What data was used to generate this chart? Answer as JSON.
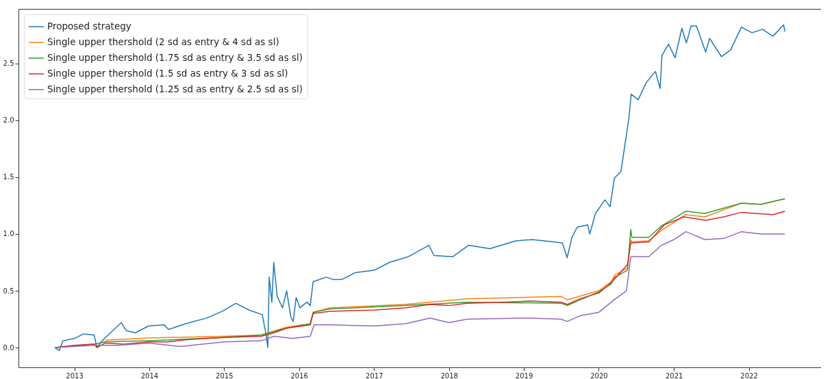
{
  "chart_data": {
    "type": "line",
    "xlim": [
      "2012-04-04",
      "2022-12-19"
    ],
    "ylim": [
      -0.174,
      2.98
    ],
    "xticks": [
      {
        "value": "2013-01-01",
        "label": "2013"
      },
      {
        "value": "2014-01-01",
        "label": "2014"
      },
      {
        "value": "2015-01-01",
        "label": "2015"
      },
      {
        "value": "2016-01-01",
        "label": "2016"
      },
      {
        "value": "2017-01-01",
        "label": "2017"
      },
      {
        "value": "2018-01-01",
        "label": "2018"
      },
      {
        "value": "2019-01-01",
        "label": "2019"
      },
      {
        "value": "2020-01-01",
        "label": "2020"
      },
      {
        "value": "2021-01-01",
        "label": "2021"
      },
      {
        "value": "2022-01-01",
        "label": "2022"
      }
    ],
    "yticks": [
      {
        "value": 0,
        "label": "0.0"
      },
      {
        "value": 0.5,
        "label": "0.5"
      },
      {
        "value": 1,
        "label": "1.0"
      },
      {
        "value": 1.5,
        "label": "1.5"
      },
      {
        "value": 2,
        "label": "2.0"
      },
      {
        "value": 2.5,
        "label": "2.5"
      }
    ],
    "grid": false,
    "legend": "top left",
    "line_style": "solid",
    "marker": "none",
    "series": [
      {
        "name": "Proposed strategy",
        "color": "#1f77b4",
        "x": [
          "2012-09-28",
          "2012-10-20",
          "2012-11-07",
          "2013-01-01",
          "2013-02-15",
          "2013-04-08",
          "2013-04-21",
          "2013-05-22",
          "2013-08-18",
          "2013-09-11",
          "2013-10-25",
          "2013-12-29",
          "2014-03-15",
          "2014-04-05",
          "2014-06-27",
          "2014-10-08",
          "2014-12-24",
          "2015-02-27",
          "2015-05-03",
          "2015-07-06",
          "2015-07-26",
          "2015-08-02",
          "2015-08-09",
          "2015-08-22",
          "2015-08-31",
          "2015-09-17",
          "2015-10-13",
          "2015-11-02",
          "2015-11-22",
          "2015-12-04",
          "2015-12-18",
          "2016-01-06",
          "2016-02-08",
          "2016-02-25",
          "2016-03-10",
          "2016-05-13",
          "2016-06-15",
          "2016-07-29",
          "2016-10-02",
          "2017-01-01",
          "2017-03-18",
          "2017-06-17",
          "2017-09-25",
          "2017-10-20",
          "2018-01-20",
          "2018-04-06",
          "2018-07-19",
          "2018-11-24",
          "2019-02-11",
          "2019-05-25",
          "2019-07-08",
          "2019-07-31",
          "2019-08-23",
          "2019-09-18",
          "2019-11-08",
          "2019-11-18",
          "2019-12-16",
          "2020-01-31",
          "2020-02-25",
          "2020-03-17",
          "2020-04-18",
          "2020-05-07",
          "2020-05-27",
          "2020-06-07",
          "2020-07-11",
          "2020-08-19",
          "2020-10-03",
          "2020-10-26",
          "2020-11-04",
          "2020-12-06",
          "2021-01-07",
          "2021-02-09",
          "2021-03-03",
          "2021-03-26",
          "2021-04-21",
          "2021-06-05",
          "2021-06-24",
          "2021-08-21",
          "2021-10-05",
          "2021-11-26",
          "2022-01-17",
          "2022-03-09",
          "2022-04-29",
          "2022-06-20",
          "2022-06-26"
        ],
        "values": [
          0.0,
          -0.025,
          0.06,
          0.08,
          0.12,
          0.11,
          0.0,
          0.07,
          0.22,
          0.15,
          0.13,
          0.19,
          0.2,
          0.16,
          0.21,
          0.26,
          0.32,
          0.39,
          0.33,
          0.29,
          0.1,
          0.0,
          0.62,
          0.4,
          0.75,
          0.45,
          0.35,
          0.5,
          0.27,
          0.23,
          0.44,
          0.35,
          0.4,
          0.37,
          0.58,
          0.62,
          0.6,
          0.6,
          0.66,
          0.68,
          0.75,
          0.8,
          0.9,
          0.81,
          0.8,
          0.9,
          0.87,
          0.94,
          0.95,
          0.93,
          0.92,
          0.79,
          0.97,
          1.06,
          1.08,
          1.0,
          1.18,
          1.3,
          1.24,
          1.49,
          1.55,
          1.78,
          2.02,
          2.23,
          2.18,
          2.33,
          2.43,
          2.28,
          2.57,
          2.67,
          2.55,
          2.81,
          2.68,
          2.83,
          2.83,
          2.6,
          2.72,
          2.56,
          2.62,
          2.82,
          2.77,
          2.8,
          2.74,
          2.84,
          2.78
        ]
      },
      {
        "name": "Single upper thershold (2 sd as entry & 4 sd as sl)",
        "color": "#ff7f0e",
        "x": [
          "2013-06-01",
          "2014-01-01",
          "2015-01-01",
          "2015-07-01",
          "2015-11-01",
          "2016-02-25",
          "2016-03-10",
          "2016-06-01",
          "2017-06-01",
          "2018-04-01",
          "2019-07-01",
          "2019-08-01",
          "2020-01-01",
          "2020-03-01",
          "2020-03-20",
          "2020-05-20",
          "2020-06-05",
          "2020-06-10",
          "2020-09-01",
          "2020-11-01",
          "2021-03-01",
          "2021-06-01",
          "2021-11-26",
          "2022-03-01",
          "2022-06-26"
        ],
        "values": [
          0.065,
          0.085,
          0.1,
          0.11,
          0.18,
          0.21,
          0.31,
          0.35,
          0.38,
          0.43,
          0.45,
          0.42,
          0.5,
          0.58,
          0.64,
          0.7,
          0.95,
          0.93,
          0.94,
          1.03,
          1.17,
          1.15,
          1.27,
          1.26,
          1.31
        ]
      },
      {
        "name": "Single upper thershold (1.75 sd as entry & 3.5 sd as sl)",
        "color": "#2ca02c",
        "x": [
          "2012-09-28",
          "2013-04-08",
          "2013-06-01",
          "2014-01-01",
          "2015-01-01",
          "2015-07-01",
          "2015-11-01",
          "2016-02-25",
          "2016-03-10",
          "2016-06-01",
          "2017-06-01",
          "2018-04-01",
          "2019-07-01",
          "2019-08-01",
          "2020-01-01",
          "2020-03-01",
          "2020-03-20",
          "2020-05-20",
          "2020-06-05",
          "2020-06-10",
          "2020-09-01",
          "2020-11-01",
          "2021-03-01",
          "2021-06-01",
          "2021-11-26",
          "2022-03-01",
          "2022-06-26"
        ],
        "values": [
          0.0,
          0.03,
          0.05,
          0.06,
          0.09,
          0.11,
          0.17,
          0.21,
          0.31,
          0.34,
          0.37,
          0.4,
          0.39,
          0.37,
          0.49,
          0.56,
          0.62,
          0.68,
          1.04,
          0.97,
          0.97,
          1.07,
          1.2,
          1.18,
          1.27,
          1.26,
          1.31
        ]
      },
      {
        "name": "Single upper thershold (1.5 sd as entry & 3 sd as sl)",
        "color": "#d62728",
        "x": [
          "2012-09-28",
          "2013-01-01",
          "2013-04-08",
          "2013-04-21",
          "2013-06-01",
          "2013-09-01",
          "2014-01-01",
          "2014-04-01",
          "2014-07-01",
          "2015-01-01",
          "2015-07-01",
          "2015-09-01",
          "2015-11-01",
          "2016-02-25",
          "2016-03-10",
          "2016-06-01",
          "2017-01-01",
          "2017-06-01",
          "2017-10-01",
          "2018-01-01",
          "2018-04-01",
          "2018-10-01",
          "2019-02-01",
          "2019-07-01",
          "2019-08-01",
          "2019-10-01",
          "2020-01-01",
          "2020-03-01",
          "2020-05-20",
          "2020-06-05",
          "2020-09-01",
          "2020-11-15",
          "2021-02-20",
          "2021-06-05",
          "2021-09-01",
          "2021-11-26",
          "2022-04-29",
          "2022-06-26"
        ],
        "values": [
          0.0,
          0.02,
          0.03,
          0.0,
          0.04,
          0.03,
          0.05,
          0.05,
          0.07,
          0.09,
          0.1,
          0.13,
          0.17,
          0.2,
          0.3,
          0.32,
          0.33,
          0.35,
          0.38,
          0.37,
          0.39,
          0.4,
          0.41,
          0.4,
          0.38,
          0.43,
          0.48,
          0.57,
          0.73,
          0.92,
          0.93,
          1.08,
          1.15,
          1.12,
          1.15,
          1.19,
          1.17,
          1.2
        ]
      },
      {
        "name": "Single upper thershold (1.25 sd as entry & 2.5 sd as sl)",
        "color": "#9467bd",
        "x": [
          "2012-09-28",
          "2013-04-08",
          "2013-08-01",
          "2014-01-01",
          "2014-06-01",
          "2015-01-01",
          "2015-07-01",
          "2015-09-01",
          "2015-12-01",
          "2016-02-25",
          "2016-03-15",
          "2016-06-01",
          "2017-01-01",
          "2017-06-01",
          "2017-10-01",
          "2018-01-01",
          "2018-04-01",
          "2019-02-01",
          "2019-07-01",
          "2019-08-01",
          "2019-10-01",
          "2020-01-01",
          "2020-03-15",
          "2020-05-15",
          "2020-06-05",
          "2020-09-01",
          "2020-11-01",
          "2021-01-01",
          "2021-03-01",
          "2021-06-01",
          "2021-09-01",
          "2021-11-26",
          "2022-03-01",
          "2022-06-26"
        ],
        "values": [
          0.0,
          0.02,
          0.02,
          0.04,
          0.01,
          0.05,
          0.06,
          0.1,
          0.08,
          0.1,
          0.2,
          0.2,
          0.19,
          0.21,
          0.26,
          0.22,
          0.25,
          0.26,
          0.25,
          0.23,
          0.28,
          0.31,
          0.42,
          0.5,
          0.8,
          0.8,
          0.9,
          0.95,
          1.02,
          0.95,
          0.96,
          1.02,
          1.0,
          1.0
        ]
      }
    ]
  }
}
